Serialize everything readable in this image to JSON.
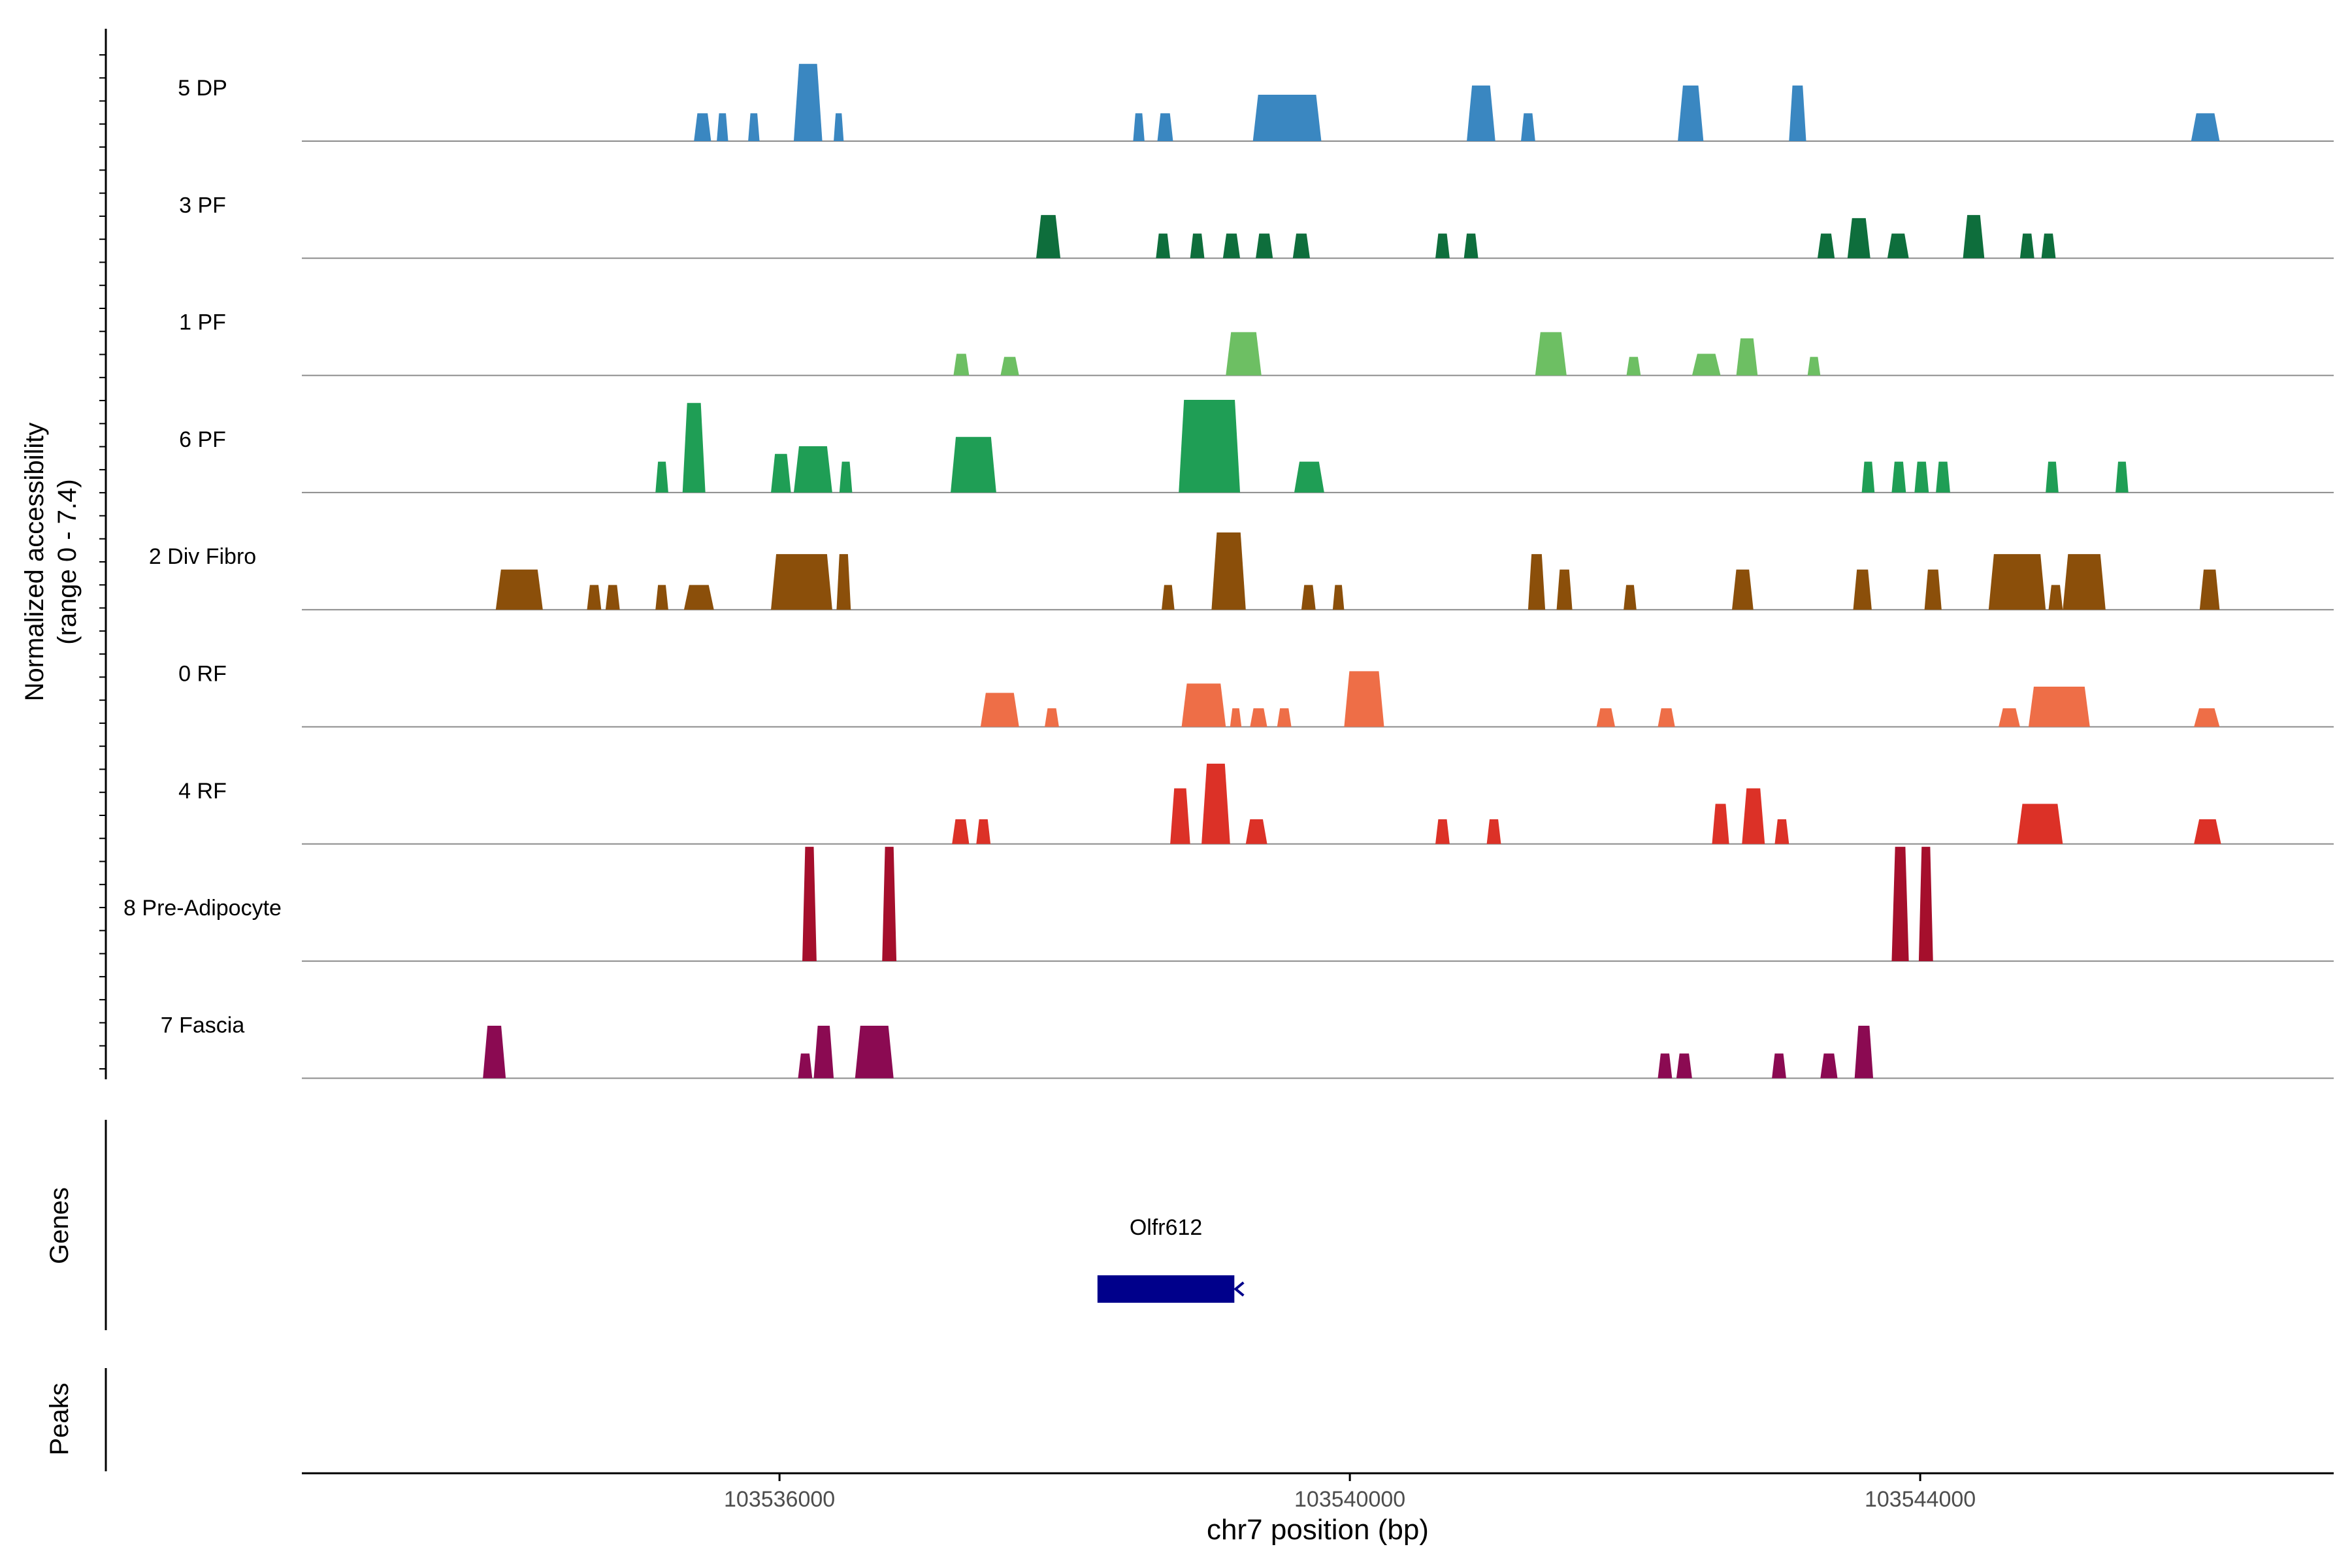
{
  "chart_data": {
    "type": "area",
    "title": "",
    "ylabel": "Normalized accessibility",
    "ylabel_range": "(range 0 - 7.4)",
    "ylim": [
      0,
      7.4
    ],
    "xlabel": "chr7 position (bp)",
    "xlim": [
      103532650,
      103546900
    ],
    "xticks": [
      103536000,
      103540000,
      103544000
    ],
    "xtick_labels": [
      "103536000",
      "103540000",
      "103544000"
    ],
    "tracks": [
      {
        "name": "5 DP",
        "color": "#3A87C1",
        "peaks": [
          [
            103535400,
            103535520,
            1.8
          ],
          [
            103535560,
            103535640,
            1.8
          ],
          [
            103535780,
            103535860,
            1.8
          ],
          [
            103536100,
            103536300,
            5.0
          ],
          [
            103536380,
            103536450,
            1.8
          ],
          [
            103538480,
            103538560,
            1.8
          ],
          [
            103538650,
            103538760,
            1.8
          ],
          [
            103539320,
            103539800,
            3.0
          ],
          [
            103540820,
            103541020,
            3.6
          ],
          [
            103541200,
            103541300,
            1.8
          ],
          [
            103542300,
            103542480,
            3.6
          ],
          [
            103543080,
            103543200,
            3.6
          ],
          [
            103545900,
            103546100,
            1.8
          ]
        ]
      },
      {
        "name": "3 PF",
        "color": "#0E6E3C",
        "peaks": [
          [
            103537800,
            103537970,
            2.8
          ],
          [
            103538640,
            103538740,
            1.6
          ],
          [
            103538880,
            103538980,
            1.6
          ],
          [
            103539110,
            103539230,
            1.6
          ],
          [
            103539340,
            103539460,
            1.6
          ],
          [
            103539600,
            103539720,
            1.6
          ],
          [
            103540600,
            103540700,
            1.6
          ],
          [
            103540800,
            103540900,
            1.6
          ],
          [
            103543280,
            103543400,
            1.6
          ],
          [
            103543490,
            103543650,
            2.6
          ],
          [
            103543770,
            103543920,
            1.6
          ],
          [
            103544300,
            103544450,
            2.8
          ],
          [
            103544700,
            103544800,
            1.6
          ],
          [
            103544850,
            103544950,
            1.6
          ]
        ]
      },
      {
        "name": "1 PF",
        "color": "#6DBF63",
        "peaks": [
          [
            103537220,
            103537330,
            1.4
          ],
          [
            103537550,
            103537680,
            1.2
          ],
          [
            103539130,
            103539380,
            2.8
          ],
          [
            103541300,
            103541520,
            2.8
          ],
          [
            103541940,
            103542040,
            1.2
          ],
          [
            103542400,
            103542600,
            1.4
          ],
          [
            103542710,
            103542860,
            2.4
          ],
          [
            103543210,
            103543300,
            1.2
          ]
        ]
      },
      {
        "name": "6 PF",
        "color": "#1F9E55",
        "peaks": [
          [
            103535130,
            103535220,
            2.0
          ],
          [
            103535320,
            103535480,
            5.8
          ],
          [
            103535940,
            103536080,
            2.5
          ],
          [
            103536100,
            103536370,
            3.0
          ],
          [
            103536420,
            103536510,
            2.0
          ],
          [
            103537200,
            103537520,
            3.6
          ],
          [
            103538800,
            103539230,
            6.0
          ],
          [
            103539610,
            103539820,
            2.0
          ],
          [
            103543590,
            103543680,
            2.0
          ],
          [
            103543800,
            103543900,
            2.0
          ],
          [
            103543960,
            103544060,
            2.0
          ],
          [
            103544110,
            103544210,
            2.0
          ],
          [
            103544880,
            103544970,
            2.0
          ],
          [
            103545370,
            103545460,
            2.0
          ]
        ]
      },
      {
        "name": "2 Div Fibro",
        "color": "#8B4F0A",
        "peaks": [
          [
            103534010,
            103534340,
            2.6
          ],
          [
            103534650,
            103534750,
            1.6
          ],
          [
            103534780,
            103534880,
            1.6
          ],
          [
            103535130,
            103535220,
            1.6
          ],
          [
            103535330,
            103535540,
            1.6
          ],
          [
            103535940,
            103536370,
            3.6
          ],
          [
            103536400,
            103536500,
            3.6
          ],
          [
            103538680,
            103538770,
            1.6
          ],
          [
            103539030,
            103539270,
            5.0
          ],
          [
            103539660,
            103539760,
            1.6
          ],
          [
            103539880,
            103539960,
            1.6
          ],
          [
            103541250,
            103541370,
            3.6
          ],
          [
            103541450,
            103541560,
            2.6
          ],
          [
            103541920,
            103542010,
            1.6
          ],
          [
            103542680,
            103542830,
            2.6
          ],
          [
            103543530,
            103543660,
            2.6
          ],
          [
            103544030,
            103544150,
            2.6
          ],
          [
            103544480,
            103544880,
            3.6
          ],
          [
            103544900,
            103545000,
            1.6
          ],
          [
            103545000,
            103545300,
            3.6
          ],
          [
            103545960,
            103546100,
            2.6
          ]
        ]
      },
      {
        "name": "0 RF",
        "color": "#EE6E47",
        "peaks": [
          [
            103537410,
            103537680,
            2.2
          ],
          [
            103537860,
            103537960,
            1.2
          ],
          [
            103538820,
            103539130,
            2.8
          ],
          [
            103539160,
            103539240,
            1.2
          ],
          [
            103539300,
            103539420,
            1.2
          ],
          [
            103539490,
            103539590,
            1.2
          ],
          [
            103539960,
            103540240,
            3.6
          ],
          [
            103541730,
            103541860,
            1.2
          ],
          [
            103542160,
            103542280,
            1.2
          ],
          [
            103544550,
            103544700,
            1.2
          ],
          [
            103544760,
            103545190,
            2.6
          ],
          [
            103545920,
            103546100,
            1.2
          ]
        ]
      },
      {
        "name": "4 RF",
        "color": "#DC3127",
        "peaks": [
          [
            103537210,
            103537330,
            1.6
          ],
          [
            103537380,
            103537480,
            1.6
          ],
          [
            103538740,
            103538880,
            3.6
          ],
          [
            103538960,
            103539160,
            5.2
          ],
          [
            103539270,
            103539420,
            1.6
          ],
          [
            103540600,
            103540700,
            1.6
          ],
          [
            103540960,
            103541060,
            1.6
          ],
          [
            103542540,
            103542660,
            2.6
          ],
          [
            103542750,
            103542910,
            3.6
          ],
          [
            103542980,
            103543080,
            1.6
          ],
          [
            103544680,
            103545000,
            2.6
          ],
          [
            103545920,
            103546110,
            1.6
          ]
        ]
      },
      {
        "name": "8 Pre-Adipocyte",
        "color": "#A50F2C",
        "peaks": [
          [
            103536160,
            103536260,
            7.4
          ],
          [
            103536720,
            103536820,
            7.4
          ],
          [
            103543800,
            103543920,
            7.4
          ],
          [
            103543990,
            103544090,
            7.4
          ]
        ]
      },
      {
        "name": "7 Fascia",
        "color": "#8B0A52",
        "peaks": [
          [
            103533920,
            103534080,
            3.4
          ],
          [
            103536130,
            103536230,
            1.6
          ],
          [
            103536240,
            103536380,
            3.4
          ],
          [
            103536530,
            103536800,
            3.4
          ],
          [
            103542160,
            103542260,
            1.6
          ],
          [
            103542290,
            103542400,
            1.6
          ],
          [
            103542960,
            103543060,
            1.6
          ],
          [
            103543300,
            103543420,
            1.6
          ],
          [
            103543540,
            103543670,
            3.4
          ]
        ]
      }
    ],
    "genes": [
      {
        "name": "Olfr612",
        "start": 103538230,
        "end": 103539190,
        "strand": "-",
        "color": "#00008B"
      }
    ],
    "panel_labels": {
      "genes": "Genes",
      "peaks": "Peaks"
    }
  }
}
